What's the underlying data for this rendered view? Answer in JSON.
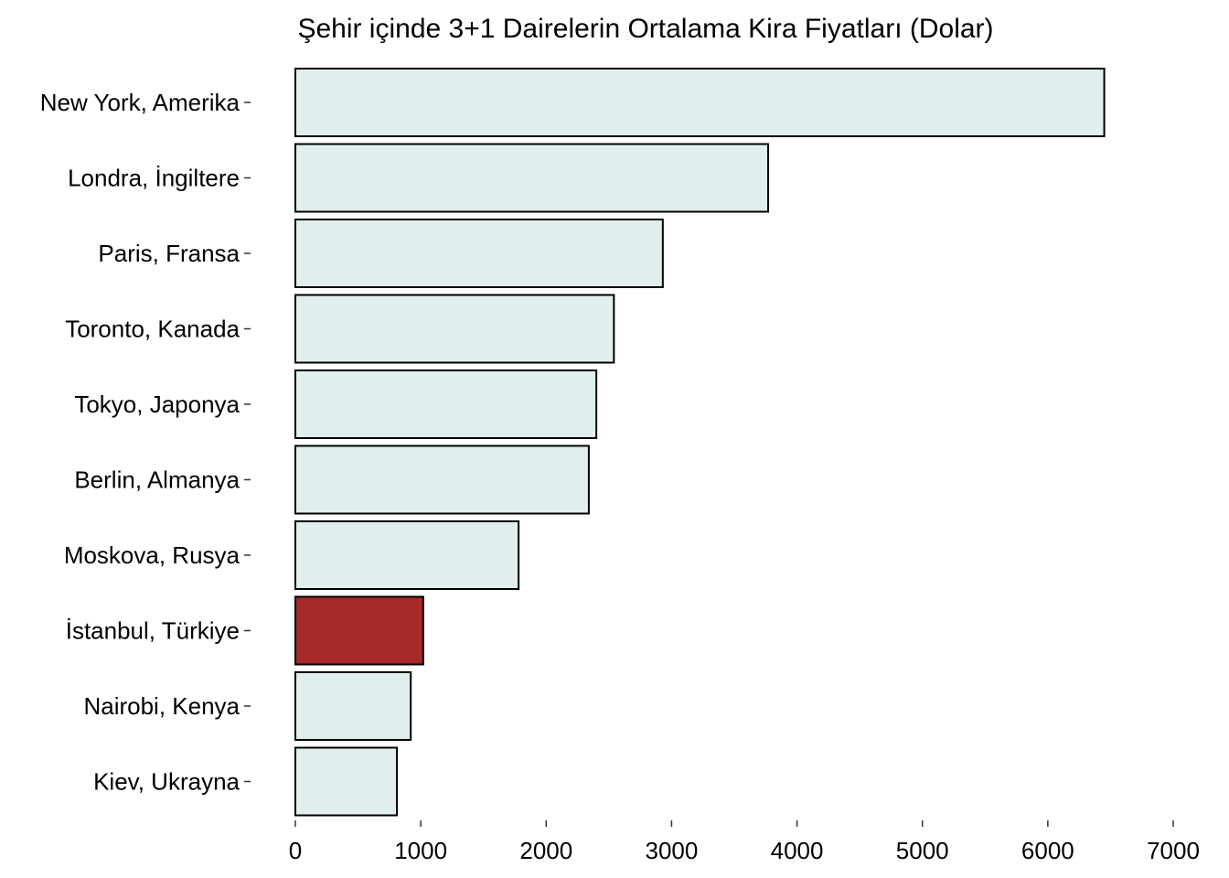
{
  "chart_data": {
    "type": "bar",
    "orientation": "horizontal",
    "title": "Şehir içinde 3+1 Dairelerin Ortalama Kira Fiyatları (Dolar)",
    "xlabel": "",
    "ylabel": "",
    "categories": [
      "New York, Amerika",
      "Londra, İngiltere",
      "Paris, Fransa",
      "Toronto, Kanada",
      "Tokyo, Japonya",
      "Berlin, Almanya",
      "Moskova, Rusya",
      "İstanbul, Türkiye",
      "Nairobi, Kenya",
      "Kiev, Ukrayna"
    ],
    "values": [
      6450,
      3770,
      2930,
      2540,
      2400,
      2340,
      1780,
      1020,
      920,
      810
    ],
    "xlim": [
      0,
      7000
    ],
    "x_ticks": [
      "0",
      "1000",
      "2000",
      "3000",
      "4000",
      "5000",
      "6000",
      "7000"
    ],
    "grid": false,
    "legend": "none",
    "colors": {
      "default_bar": "#e0eeee",
      "highlight_bar": "#a62a2a",
      "bar_border": "#000000"
    },
    "highlight_category": "İstanbul, Türkiye"
  }
}
